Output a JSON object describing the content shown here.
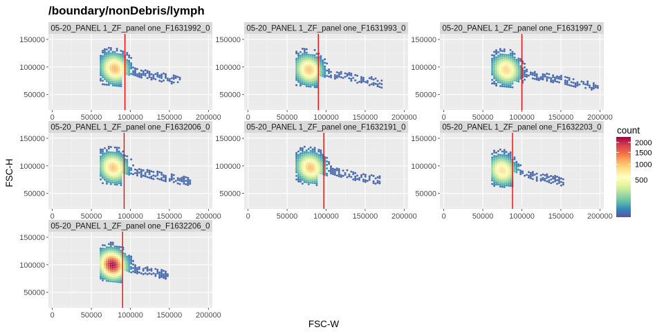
{
  "chart_data": {
    "type": "heatmap",
    "title": "/boundary/nonDebris/lymph",
    "xlabel": "FSC-W",
    "ylabel": "FSC-H",
    "xlim": [
      -5000,
      205000
    ],
    "ylim": [
      22000,
      160000
    ],
    "x_ticks": [
      0,
      50000,
      100000,
      150000,
      200000
    ],
    "x_tick_labels": [
      "0",
      "50000",
      "100000",
      "150000",
      "200000"
    ],
    "y_ticks": [
      50000,
      100000,
      150000
    ],
    "y_tick_labels": [
      "50000",
      "100000",
      "150000"
    ],
    "grid": true,
    "legend": {
      "title": "count",
      "placement": "right",
      "min": 0,
      "max": 2300,
      "ticks": [
        500,
        1000,
        1500,
        2000
      ],
      "tick_labels": [
        "500",
        "1000",
        "1500",
        "2000"
      ],
      "colors": [
        "#5E4FA2",
        "#3288BD",
        "#66C2A5",
        "#ABDDA4",
        "#E6F598",
        "#FFFFBF",
        "#FEE08B",
        "#FDAE61",
        "#F46D43",
        "#D53E4F",
        "#9E0142"
      ]
    },
    "gate_line_color": "#FF0000",
    "panels": [
      {
        "strip": "05-20_PANEL 1_ZF_panel one_F1631992_0",
        "gate_x": 93000,
        "peak": [
          80000,
          97000
        ],
        "max_count": 1100,
        "x_max": 165000,
        "tail_low": 42000
      },
      {
        "strip": "05-20_PANEL 1_ZF_panel one_F1631993_0",
        "gate_x": 90000,
        "peak": [
          78000,
          95000
        ],
        "max_count": 1000,
        "x_max": 172000,
        "tail_low": 38000
      },
      {
        "strip": "05-20_PANEL 1_ZF_panel one_F1631997_0",
        "gate_x": 100000,
        "peak": [
          80000,
          95000
        ],
        "max_count": 900,
        "x_max": 198000,
        "tail_low": 28000
      },
      {
        "strip": "05-20_PANEL 1_ZF_panel one_F1632006_0",
        "gate_x": 92000,
        "peak": [
          78000,
          97000
        ],
        "max_count": 1000,
        "x_max": 178000,
        "tail_low": 40000
      },
      {
        "strip": "05-20_PANEL 1_ZF_panel one_F1632191_0",
        "gate_x": 97000,
        "peak": [
          80000,
          97000
        ],
        "max_count": 1050,
        "x_max": 170000,
        "tail_low": 40000
      },
      {
        "strip": "05-20_PANEL 1_ZF_panel one_F1632203_0",
        "gate_x": 88000,
        "peak": [
          75000,
          92000
        ],
        "max_count": 800,
        "x_max": 155000,
        "tail_low": 42000
      },
      {
        "strip": "05-20_PANEL 1_ZF_panel one_F1632206_0",
        "gate_x": 90000,
        "peak": [
          77000,
          100000
        ],
        "max_count": 2300,
        "x_max": 150000,
        "tail_low": 45000
      }
    ]
  }
}
